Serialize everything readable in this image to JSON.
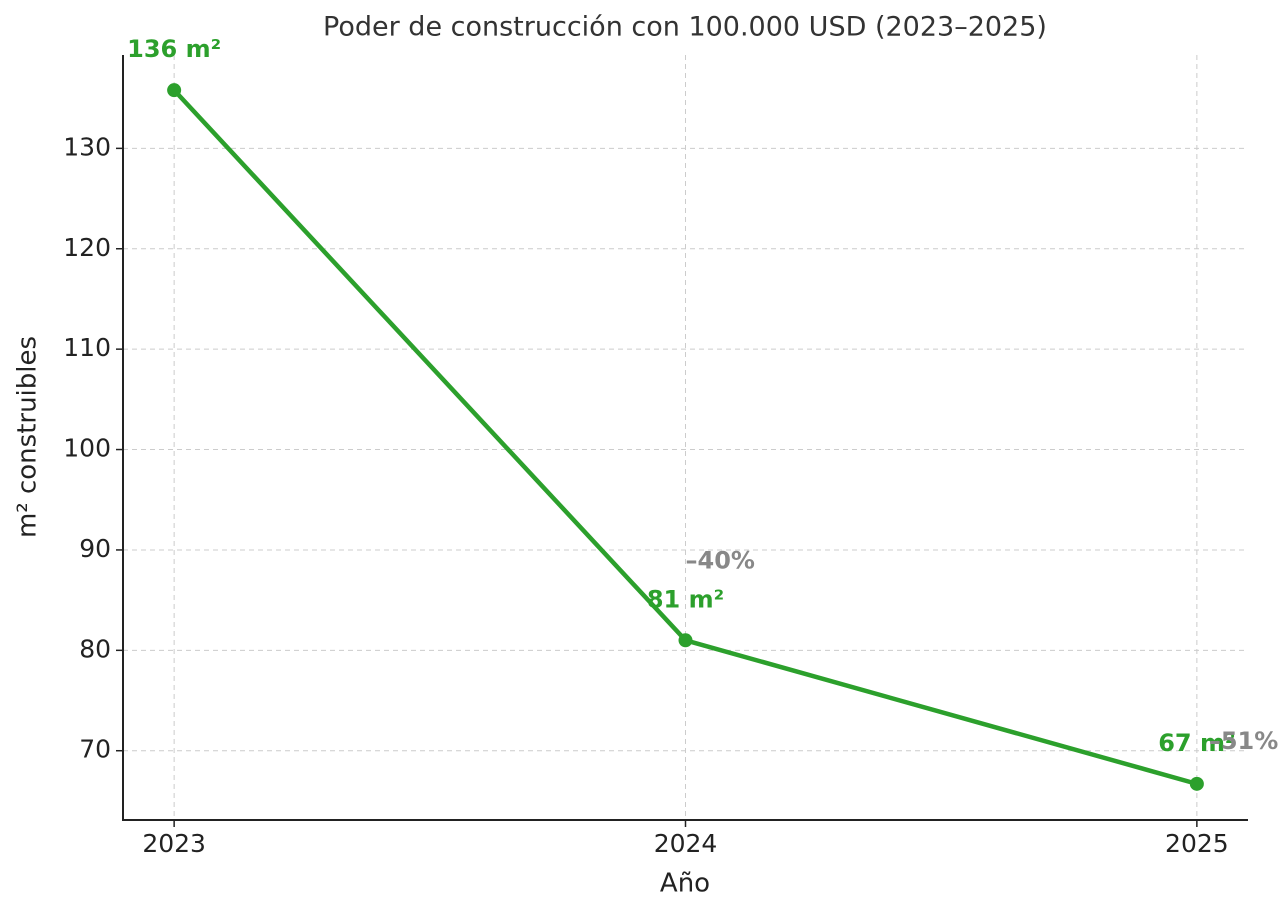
{
  "chart_data": {
    "type": "line",
    "title": "Poder de construcción con 100.000 USD (2023–2025)",
    "xlabel": "Año",
    "ylabel": "m² construibles",
    "x": [
      2023,
      2024,
      2025
    ],
    "series": [
      {
        "name": "m² construibles",
        "color": "#2ca02c",
        "values": [
          135.8,
          81,
          66.7
        ],
        "value_labels": [
          "136 m²",
          "81 m²",
          "67 m²"
        ]
      }
    ],
    "annotations": [
      "–40%",
      "–51%"
    ],
    "annotation_color": "#888888",
    "xlim": [
      2022.9,
      2025.1
    ],
    "xticks": [
      2023,
      2024,
      2025
    ],
    "ylim": [
      63.1,
      139.3
    ],
    "yticks": [
      70,
      80,
      90,
      100,
      110,
      120,
      130
    ],
    "grid": true
  }
}
